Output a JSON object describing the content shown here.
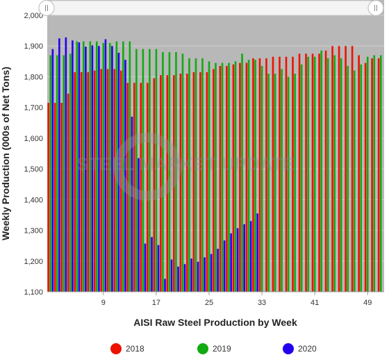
{
  "chart_data": {
    "type": "bar",
    "title": "",
    "xlabel": "AISI Raw Steel Production by Week",
    "ylabel": "Weekly Production (000s of Net Tons)",
    "ylim": [
      1100,
      2000
    ],
    "yticks": [
      1100,
      1200,
      1300,
      1400,
      1500,
      1600,
      1700,
      1800,
      1900,
      2000
    ],
    "ytick_labels": [
      "1,100",
      "1,200",
      "1,300",
      "1,400",
      "1,500",
      "1,600",
      "1,700",
      "1,800",
      "1,900",
      "2,000"
    ],
    "xticks": [
      9,
      17,
      25,
      33,
      41,
      49
    ],
    "xtick_labels": [
      "9",
      "17",
      "25",
      "33",
      "41",
      "49"
    ],
    "xlim": [
      0.5,
      51.5
    ],
    "grid": true,
    "legend": "bottom",
    "navigator_shaded_range": [
      1100,
      2000
    ],
    "watermark": "STEEL MARKET UPDATE",
    "series": [
      {
        "name": "2018",
        "color": "#ee1100",
        "x": [
          1,
          2,
          3,
          4,
          5,
          6,
          7,
          8,
          9,
          10,
          11,
          12,
          13,
          14,
          15,
          16,
          17,
          18,
          19,
          20,
          21,
          22,
          23,
          24,
          25,
          26,
          27,
          28,
          29,
          30,
          31,
          32,
          33,
          34,
          35,
          36,
          37,
          38,
          39,
          40,
          41,
          42,
          43,
          44,
          45,
          46,
          47,
          48,
          49,
          50,
          51
        ],
        "values": [
          1715,
          1715,
          1715,
          1745,
          1815,
          1815,
          1815,
          1820,
          1825,
          1825,
          1825,
          1820,
          1780,
          1780,
          1780,
          1780,
          1795,
          1805,
          1805,
          1805,
          1810,
          1810,
          1815,
          1815,
          1815,
          1825,
          1835,
          1835,
          1840,
          1845,
          1845,
          1860,
          1860,
          1860,
          1865,
          1865,
          1865,
          1865,
          1875,
          1875,
          1875,
          1875,
          1885,
          1900,
          1900,
          1900,
          1900,
          1870,
          1845,
          1860,
          1860
        ]
      },
      {
        "name": "2019",
        "color": "#11aa11",
        "x": [
          1,
          2,
          3,
          4,
          5,
          6,
          7,
          8,
          9,
          10,
          11,
          12,
          13,
          14,
          15,
          16,
          17,
          18,
          19,
          20,
          21,
          22,
          23,
          24,
          25,
          26,
          27,
          28,
          29,
          30,
          31,
          32,
          33,
          34,
          35,
          36,
          37,
          38,
          39,
          40,
          41,
          42,
          43,
          44,
          45,
          46,
          47,
          48,
          49,
          50,
          51
        ],
        "values": [
          1870,
          1870,
          1870,
          1875,
          1915,
          1915,
          1915,
          1915,
          1910,
          1910,
          1915,
          1915,
          1915,
          1890,
          1890,
          1890,
          1890,
          1880,
          1880,
          1880,
          1875,
          1860,
          1860,
          1860,
          1850,
          1845,
          1845,
          1845,
          1850,
          1875,
          1855,
          1855,
          1835,
          1810,
          1810,
          1825,
          1800,
          1810,
          1840,
          1865,
          1865,
          1885,
          1860,
          1870,
          1860,
          1835,
          1820,
          1840,
          1865,
          1870,
          1870
        ]
      },
      {
        "name": "2020",
        "color": "#2200ee",
        "x": [
          1,
          2,
          3,
          4,
          5,
          6,
          7,
          8,
          9,
          10,
          11,
          12,
          13,
          14,
          15,
          16,
          17,
          18,
          19,
          20,
          21,
          22,
          23,
          24,
          25,
          26,
          27,
          28,
          29,
          30,
          31,
          32
        ],
        "values": [
          1890,
          1925,
          1928,
          1918,
          1912,
          1898,
          1902,
          1900,
          1922,
          1900,
          1878,
          1855,
          1670,
          1535,
          1257,
          1278,
          1252,
          1142,
          1205,
          1182,
          1190,
          1208,
          1198,
          1212,
          1223,
          1240,
          1267,
          1290,
          1307,
          1320,
          1330,
          1355
        ]
      }
    ]
  }
}
